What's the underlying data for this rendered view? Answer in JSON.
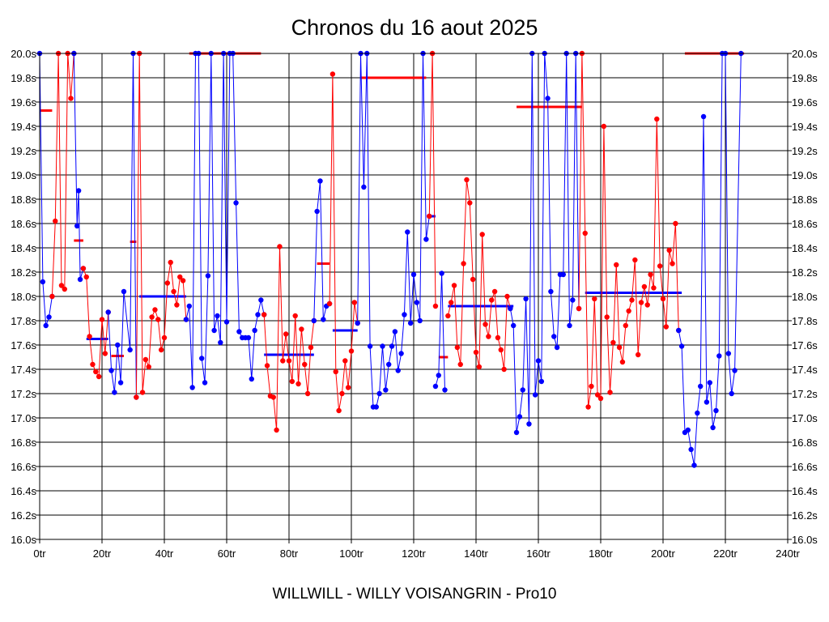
{
  "chart_data": {
    "type": "line",
    "title": "Chronos du 16 aout 2025",
    "footer": "WILLWILL - WILLY VOISANGRIN - Pro10",
    "xlabel": "",
    "ylabel": "",
    "xlim": [
      0,
      240
    ],
    "ylim": [
      16.0,
      20.0
    ],
    "x_ticks": [
      0,
      20,
      40,
      60,
      80,
      100,
      120,
      140,
      160,
      180,
      200,
      220,
      240
    ],
    "x_tick_labels": [
      "0tr",
      "20tr",
      "40tr",
      "60tr",
      "80tr",
      "100tr",
      "120tr",
      "140tr",
      "160tr",
      "180tr",
      "200tr",
      "220tr",
      "240tr"
    ],
    "y_ticks": [
      16.0,
      16.2,
      16.4,
      16.6,
      16.8,
      17.0,
      17.2,
      17.4,
      17.6,
      17.8,
      18.0,
      18.2,
      18.4,
      18.6,
      18.8,
      19.0,
      19.2,
      19.4,
      19.6,
      19.8,
      20.0
    ],
    "y_tick_labels": [
      "16.0s",
      "16.2s",
      "16.4s",
      "16.6s",
      "16.8s",
      "17.0s",
      "17.2s",
      "17.4s",
      "17.6s",
      "17.8s",
      "18.0s",
      "18.2s",
      "18.4s",
      "18.6s",
      "18.8s",
      "19.0s",
      "19.2s",
      "19.4s",
      "19.6s",
      "19.8s",
      "20.0s"
    ],
    "grid": true,
    "colors": {
      "blue": "#0000ff",
      "red": "#ff0000"
    },
    "segments": [
      {
        "color": "blue",
        "points": [
          [
            0,
            20.0
          ],
          [
            1,
            18.12
          ],
          [
            2,
            17.76
          ],
          [
            3,
            17.83
          ],
          [
            4,
            18.0
          ]
        ]
      },
      {
        "color": "red",
        "points": [
          [
            4,
            18.0
          ],
          [
            5,
            18.62
          ],
          [
            6,
            20.0
          ],
          [
            7,
            18.09
          ],
          [
            8,
            18.06
          ],
          [
            9,
            20.0
          ],
          [
            10,
            19.63
          ],
          [
            11,
            20.0
          ]
        ]
      },
      {
        "color": "blue",
        "points": [
          [
            11,
            20.0
          ],
          [
            12,
            18.58
          ],
          [
            12.5,
            18.87
          ],
          [
            13,
            18.14
          ],
          [
            14,
            18.23
          ]
        ]
      },
      {
        "color": "red",
        "points": [
          [
            14,
            18.23
          ],
          [
            15,
            18.16
          ],
          [
            16,
            17.67
          ],
          [
            17,
            17.44
          ],
          [
            18,
            17.38
          ],
          [
            19,
            17.34
          ],
          [
            20,
            17.81
          ],
          [
            21,
            17.53
          ],
          [
            22,
            17.87
          ]
        ]
      },
      {
        "color": "blue",
        "points": [
          [
            22,
            17.87
          ],
          [
            23,
            17.39
          ],
          [
            24,
            17.21
          ],
          [
            25,
            17.6
          ],
          [
            26,
            17.29
          ],
          [
            27,
            18.04
          ],
          [
            29,
            17.56
          ],
          [
            30,
            20.0
          ],
          [
            31,
            17.17
          ]
        ]
      },
      {
        "color": "red",
        "points": [
          [
            31,
            17.17
          ],
          [
            32,
            20.0
          ],
          [
            33,
            17.21
          ],
          [
            34,
            17.48
          ],
          [
            35,
            17.42
          ],
          [
            36,
            17.83
          ],
          [
            37,
            17.89
          ],
          [
            38,
            17.81
          ],
          [
            39,
            17.56
          ],
          [
            40,
            17.66
          ],
          [
            41,
            18.11
          ],
          [
            42,
            18.28
          ],
          [
            43,
            18.04
          ],
          [
            44,
            17.93
          ],
          [
            45,
            18.16
          ],
          [
            46,
            18.13
          ],
          [
            47,
            17.81
          ]
        ]
      },
      {
        "color": "blue",
        "points": [
          [
            47,
            17.81
          ],
          [
            48,
            17.92
          ],
          [
            49,
            17.25
          ],
          [
            50,
            20.0
          ],
          [
            51,
            20.0
          ],
          [
            52,
            17.49
          ],
          [
            53,
            17.29
          ],
          [
            54,
            18.17
          ],
          [
            55,
            20.0
          ],
          [
            56,
            17.72
          ],
          [
            57,
            17.84
          ],
          [
            58,
            17.62
          ],
          [
            59,
            20.0
          ],
          [
            60,
            17.79
          ],
          [
            61,
            20.0
          ],
          [
            62,
            20.0
          ],
          [
            63,
            18.77
          ],
          [
            64,
            17.71
          ],
          [
            65,
            17.66
          ],
          [
            66,
            17.66
          ],
          [
            67,
            17.66
          ],
          [
            68,
            17.32
          ],
          [
            69,
            17.72
          ],
          [
            70,
            17.85
          ],
          [
            71,
            17.97
          ],
          [
            72,
            17.85
          ]
        ]
      },
      {
        "color": "red",
        "points": [
          [
            72,
            17.85
          ],
          [
            73,
            17.43
          ],
          [
            74,
            17.18
          ],
          [
            75,
            17.17
          ],
          [
            76,
            16.9
          ],
          [
            77,
            18.41
          ],
          [
            78,
            17.47
          ],
          [
            79,
            17.69
          ],
          [
            80,
            17.47
          ],
          [
            81,
            17.3
          ],
          [
            82,
            17.84
          ],
          [
            83,
            17.28
          ],
          [
            84,
            17.73
          ],
          [
            85,
            17.44
          ],
          [
            86,
            17.2
          ],
          [
            87,
            17.58
          ],
          [
            88,
            17.8
          ]
        ]
      },
      {
        "color": "blue",
        "points": [
          [
            88,
            17.8
          ],
          [
            89,
            18.7
          ],
          [
            90,
            18.95
          ],
          [
            91,
            17.81
          ],
          [
            92,
            17.92
          ],
          [
            93,
            17.94
          ]
        ]
      },
      {
        "color": "red",
        "points": [
          [
            93,
            17.94
          ],
          [
            94,
            19.83
          ],
          [
            95,
            17.38
          ],
          [
            96,
            17.06
          ],
          [
            97,
            17.2
          ],
          [
            98,
            17.47
          ],
          [
            99,
            17.25
          ],
          [
            100,
            17.55
          ],
          [
            101,
            17.95
          ],
          [
            102,
            17.78
          ]
        ]
      },
      {
        "color": "blue",
        "points": [
          [
            102,
            17.78
          ],
          [
            103,
            20.0
          ],
          [
            104,
            18.9
          ],
          [
            105,
            20.0
          ],
          [
            106,
            17.59
          ],
          [
            107,
            17.09
          ],
          [
            108,
            17.09
          ],
          [
            109,
            17.2
          ],
          [
            110,
            17.59
          ],
          [
            111,
            17.23
          ],
          [
            112,
            17.44
          ],
          [
            113,
            17.59
          ],
          [
            114,
            17.71
          ],
          [
            115,
            17.39
          ],
          [
            116,
            17.53
          ],
          [
            117,
            17.85
          ],
          [
            118,
            18.53
          ],
          [
            119,
            17.78
          ],
          [
            120,
            18.18
          ],
          [
            121,
            17.95
          ],
          [
            122,
            17.8
          ],
          [
            123,
            20.0
          ],
          [
            124,
            18.47
          ],
          [
            125,
            18.66
          ]
        ]
      },
      {
        "color": "red",
        "points": [
          [
            125,
            18.66
          ],
          [
            126,
            20.0
          ],
          [
            127,
            17.92
          ]
        ]
      },
      {
        "color": "blue",
        "points": [
          [
            127,
            17.26
          ],
          [
            128,
            17.35
          ],
          [
            129,
            18.19
          ],
          [
            130,
            17.23
          ]
        ]
      },
      {
        "color": "red",
        "points": [
          [
            131,
            17.84
          ],
          [
            132,
            17.95
          ],
          [
            133,
            18.09
          ],
          [
            134,
            17.58
          ],
          [
            135,
            17.44
          ],
          [
            136,
            18.27
          ],
          [
            137,
            18.96
          ],
          [
            138,
            18.77
          ],
          [
            139,
            18.14
          ],
          [
            140,
            17.54
          ],
          [
            141,
            17.42
          ],
          [
            142,
            18.51
          ],
          [
            143,
            17.77
          ],
          [
            144,
            17.67
          ],
          [
            145,
            17.97
          ],
          [
            146,
            18.04
          ],
          [
            147,
            17.66
          ],
          [
            148,
            17.56
          ],
          [
            149,
            17.4
          ],
          [
            150,
            18.0
          ],
          [
            151,
            17.9
          ]
        ]
      },
      {
        "color": "blue",
        "points": [
          [
            151,
            17.9
          ],
          [
            152,
            17.76
          ],
          [
            153,
            16.88
          ],
          [
            154,
            17.01
          ],
          [
            155,
            17.23
          ],
          [
            156,
            17.98
          ],
          [
            157,
            16.95
          ],
          [
            158,
            20.0
          ],
          [
            159,
            17.19
          ],
          [
            160,
            17.47
          ],
          [
            161,
            17.3
          ],
          [
            162,
            20.0
          ],
          [
            163,
            19.63
          ],
          [
            164,
            18.04
          ],
          [
            165,
            17.67
          ],
          [
            166,
            17.58
          ],
          [
            167,
            18.18
          ],
          [
            168,
            18.18
          ],
          [
            169,
            20.0
          ],
          [
            170,
            17.76
          ],
          [
            171,
            17.97
          ],
          [
            172,
            20.0
          ],
          [
            173,
            17.9
          ]
        ]
      },
      {
        "color": "red",
        "points": [
          [
            173,
            17.9
          ],
          [
            174,
            20.0
          ],
          [
            175,
            18.52
          ],
          [
            176,
            17.09
          ],
          [
            177,
            17.26
          ],
          [
            178,
            17.98
          ],
          [
            179,
            17.19
          ],
          [
            180,
            17.16
          ],
          [
            181,
            19.4
          ],
          [
            182,
            17.83
          ],
          [
            183,
            17.21
          ],
          [
            184,
            17.62
          ],
          [
            185,
            18.26
          ],
          [
            186,
            17.58
          ],
          [
            187,
            17.46
          ],
          [
            188,
            17.76
          ],
          [
            189,
            17.88
          ],
          [
            190,
            17.97
          ],
          [
            191,
            18.3
          ],
          [
            192,
            17.52
          ],
          [
            193,
            17.95
          ],
          [
            194,
            18.08
          ],
          [
            195,
            17.93
          ],
          [
            196,
            18.18
          ],
          [
            197,
            18.07
          ],
          [
            198,
            19.46
          ],
          [
            199,
            18.25
          ],
          [
            200,
            17.98
          ],
          [
            201,
            17.75
          ],
          [
            202,
            18.38
          ],
          [
            203,
            18.27
          ],
          [
            204,
            18.6
          ],
          [
            205,
            17.72
          ]
        ]
      },
      {
        "color": "blue",
        "points": [
          [
            205,
            17.72
          ],
          [
            206,
            17.59
          ],
          [
            207,
            16.88
          ],
          [
            208,
            16.9
          ],
          [
            209,
            16.74
          ],
          [
            210,
            16.61
          ],
          [
            211,
            17.04
          ],
          [
            212,
            17.26
          ],
          [
            213,
            19.48
          ],
          [
            214,
            17.13
          ],
          [
            215,
            17.29
          ],
          [
            216,
            16.92
          ],
          [
            217,
            17.06
          ],
          [
            218,
            17.51
          ],
          [
            219,
            20.0
          ],
          [
            220,
            20.0
          ],
          [
            221,
            17.53
          ],
          [
            222,
            17.2
          ],
          [
            223,
            17.39
          ],
          [
            225,
            20.0
          ]
        ]
      }
    ],
    "averages": [
      {
        "color": "red",
        "x0": 0,
        "x1": 4,
        "y": 19.53
      },
      {
        "color": "red",
        "x0": 11,
        "x1": 14,
        "y": 18.46
      },
      {
        "color": "blue",
        "x0": 15,
        "x1": 22,
        "y": 17.65
      },
      {
        "color": "red",
        "x0": 23,
        "x1": 27,
        "y": 17.51
      },
      {
        "color": "red",
        "x0": 29,
        "x1": 31,
        "y": 18.45
      },
      {
        "color": "blue",
        "x0": 32,
        "x1": 47,
        "y": 18.0
      },
      {
        "color": "red",
        "x0": 48,
        "x1": 71,
        "y": 20.0
      },
      {
        "color": "blue",
        "x0": 72,
        "x1": 88,
        "y": 17.52
      },
      {
        "color": "red",
        "x0": 89,
        "x1": 93,
        "y": 18.27
      },
      {
        "color": "blue",
        "x0": 94,
        "x1": 102,
        "y": 17.72
      },
      {
        "color": "red",
        "x0": 103,
        "x1": 124,
        "y": 19.8
      },
      {
        "color": "blue",
        "x0": 125,
        "x1": 127,
        "y": 18.66
      },
      {
        "color": "red",
        "x0": 128,
        "x1": 131,
        "y": 17.5
      },
      {
        "color": "blue",
        "x0": 131,
        "x1": 152,
        "y": 17.92
      },
      {
        "color": "red",
        "x0": 153,
        "x1": 174,
        "y": 19.56
      },
      {
        "color": "blue",
        "x0": 175,
        "x1": 206,
        "y": 18.03
      },
      {
        "color": "red",
        "x0": 207,
        "x1": 226,
        "y": 20.0
      }
    ]
  }
}
